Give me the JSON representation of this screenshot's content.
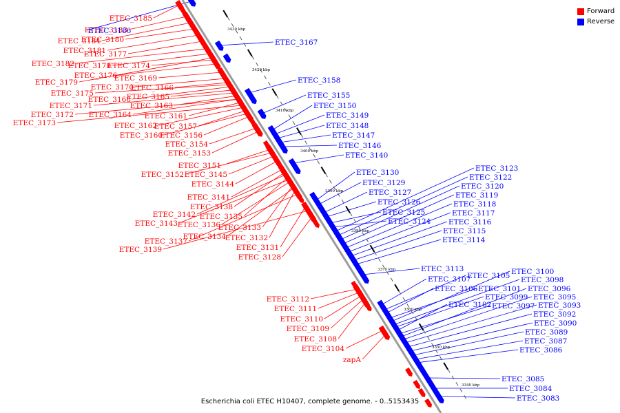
{
  "colors": {
    "forward": "#ff0000",
    "reverse": "#0000ff",
    "axis": "#9b9b9b"
  },
  "legend": {
    "forward_label": "Forward",
    "reverse_label": "Reverse"
  },
  "footer_text": "Escherichia coli ETEC H10407, complete genome. - 0..5153435",
  "scale_labels": [
    "3430 kbp",
    "3420 kbp",
    "3410 kbp",
    "3400 kbp",
    "3390 kbp",
    "3380 kbp",
    "3370 kbp",
    "3360 kbp",
    "3350 kbp",
    "3340 kbp"
  ],
  "forward_genes": [
    "ETEC_3185",
    "ETEC_3183",
    "ETEC_3184",
    "ETEC_3180",
    "ETEC_3181",
    "ETEC_3177",
    "ETEC_3182",
    "ETEC_3178",
    "ETEC_3174",
    "ETEC_3176",
    "ETEC_3169",
    "ETEC_3179",
    "ETEC_3170",
    "ETEC_3166",
    "ETEC_3175",
    "ETEC_3168",
    "ETEC_3165",
    "ETEC_3171",
    "ETEC_3163",
    "ETEC_3172",
    "ETEC_3164",
    "ETEC_3161",
    "ETEC_3173",
    "ETEC_3162",
    "ETEC_3157",
    "ETEC_3160",
    "ETEC_3156",
    "ETEC_3154",
    "ETEC_3153",
    "ETEC_3151",
    "ETEC_3152",
    "ETEC_3145",
    "ETEC_3144",
    "ETEC_3141",
    "ETEC_3138",
    "ETEC_3142",
    "ETEC_3135",
    "ETEC_3143",
    "ETEC_3136",
    "ETEC_3133",
    "ETEC_3134",
    "ETEC_3132",
    "ETEC_3137",
    "ETEC_3131",
    "ETEC_3139",
    "ETEC_3128",
    "ETEC_3112",
    "ETEC_3111",
    "ETEC_3110",
    "ETEC_3109",
    "ETEC_3108",
    "ETEC_3104",
    "zapA"
  ],
  "reverse_genes": [
    "ETEC_3186",
    "ETEC_3167",
    "ETEC_3158",
    "ETEC_3155",
    "ETEC_3150",
    "ETEC_3149",
    "ETEC_3148",
    "ETEC_3147",
    "ETEC_3146",
    "ETEC_3140",
    "ETEC_3130",
    "ETEC_3129",
    "ETEC_3127",
    "ETEC_3126",
    "ETEC_3125",
    "ETEC_3124",
    "ETEC_3123",
    "ETEC_3122",
    "ETEC_3120",
    "ETEC_3119",
    "ETEC_3118",
    "ETEC_3117",
    "ETEC_3116",
    "ETEC_3115",
    "ETEC_3114",
    "ETEC_3113",
    "ETEC_3107",
    "ETEC_3105",
    "ETEC_3106",
    "ETEC_3101",
    "ETEC_3100",
    "ETEC_3098",
    "ETEC_3099",
    "ETEC_3102",
    "ETEC_3097",
    "ETEC_3096",
    "ETEC_3095",
    "ETEC_3093",
    "ETEC_3092",
    "ETEC_3090",
    "ETEC_3089",
    "ETEC_3087",
    "ETEC_3086",
    "ETEC_3085",
    "ETEC_3084",
    "ETEC_3083"
  ]
}
